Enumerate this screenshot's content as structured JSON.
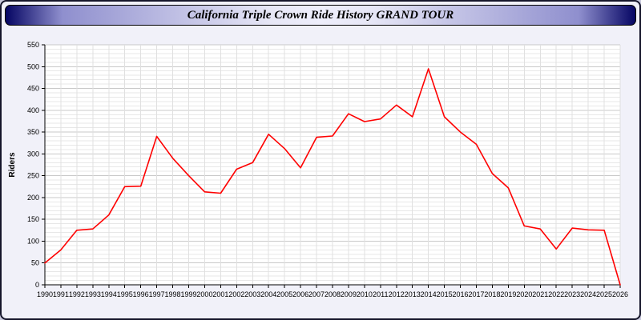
{
  "window": {
    "title": "California Triple Crown Ride History GRAND TOUR"
  },
  "colors": {
    "header_accent": "#050563",
    "line": "#ff0000",
    "plot_background": "#ffffff",
    "page_background": "#f1f1f9"
  },
  "chart_data": {
    "type": "line",
    "title": "California Triple Crown Ride History GRAND TOUR",
    "xlabel": "",
    "ylabel": "Riders",
    "ylim": [
      0,
      550
    ],
    "y_tick_step": 50,
    "y_minor_step": 10,
    "grid": true,
    "legend": "none",
    "line_color": "#ff0000",
    "x": [
      1990,
      1991,
      1992,
      1993,
      1994,
      1995,
      1996,
      1997,
      1998,
      1999,
      2000,
      2001,
      2002,
      2003,
      2004,
      2005,
      2006,
      2007,
      2008,
      2009,
      2010,
      2011,
      2012,
      2013,
      2014,
      2015,
      2016,
      2017,
      2018,
      2019,
      2020,
      2021,
      2022,
      2023,
      2024,
      2025,
      2026
    ],
    "values": [
      50,
      80,
      125,
      128,
      160,
      225,
      226,
      340,
      290,
      250,
      213,
      210,
      265,
      280,
      345,
      312,
      268,
      338,
      341,
      392,
      374,
      380,
      412,
      385,
      495,
      385,
      350,
      322,
      255,
      222,
      135,
      128,
      82,
      130,
      126,
      125,
      0
    ]
  }
}
